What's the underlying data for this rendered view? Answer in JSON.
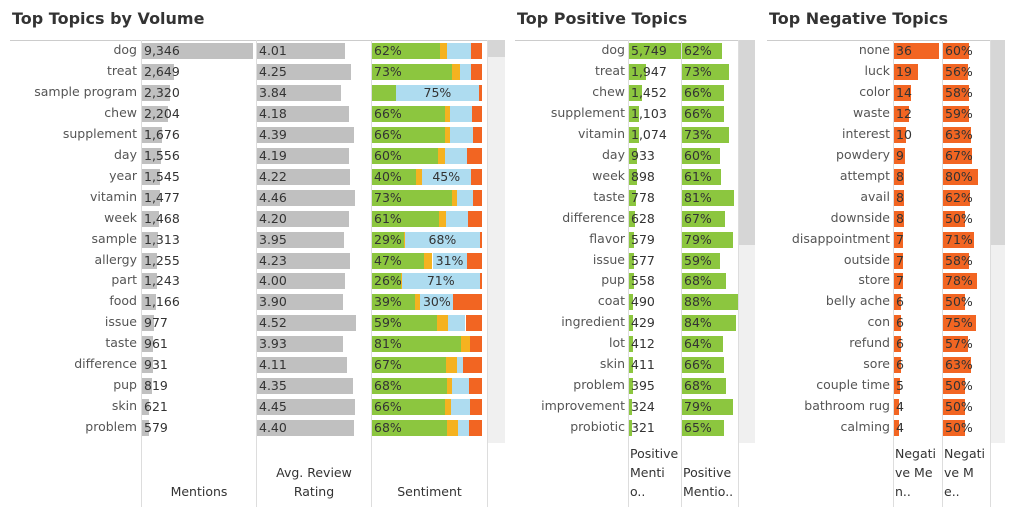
{
  "chart_data": [
    {
      "type": "table-bar",
      "title": "Top Topics by Volume",
      "categories": [
        "dog",
        "treat",
        "sample program",
        "chew",
        "supplement",
        "day",
        "year",
        "vitamin",
        "week",
        "sample",
        "allergy",
        "part",
        "food",
        "issue",
        "taste",
        "difference",
        "pup",
        "skin",
        "problem"
      ],
      "columns": [
        {
          "header": "Mentions",
          "color": "#c0c0c0",
          "xlim": [
            0,
            9400
          ],
          "values": [
            9346,
            2649,
            2320,
            2204,
            1676,
            1556,
            1545,
            1477,
            1468,
            1313,
            1255,
            1243,
            1166,
            977,
            961,
            931,
            819,
            621,
            579
          ],
          "value_labels": [
            "9,346",
            "2,649",
            "2,320",
            "2,204",
            "1,676",
            "1,556",
            "1,545",
            "1,477",
            "1,468",
            "1,313",
            "1,255",
            "1,243",
            "1,166",
            "977",
            "961",
            "931",
            "819",
            "621",
            "579"
          ]
        },
        {
          "header": "Avg. Review Rating",
          "color": "#c0c0c0",
          "xlim": [
            0,
            5
          ],
          "values": [
            4.01,
            4.25,
            3.84,
            4.18,
            4.39,
            4.19,
            4.22,
            4.46,
            4.2,
            3.95,
            4.23,
            4.0,
            3.9,
            4.52,
            3.93,
            4.11,
            4.35,
            4.45,
            4.4
          ],
          "value_labels": [
            "4.01",
            "4.25",
            "3.84",
            "4.18",
            "4.39",
            "4.19",
            "4.22",
            "4.46",
            "4.20",
            "3.95",
            "4.23",
            "4.00",
            "3.90",
            "4.52",
            "3.93",
            "4.11",
            "4.35",
            "4.45",
            "4.40"
          ]
        },
        {
          "header": "Sentiment",
          "stacked": true,
          "colors": [
            "#8cc63f",
            "#f5b220",
            "#aedcf0",
            "#f26522"
          ],
          "xlim": [
            0,
            100
          ],
          "values": [
            [
              62,
              6,
              22,
              10
            ],
            [
              73,
              7,
              10,
              10
            ],
            [
              22,
              0,
              75,
              3
            ],
            [
              66,
              5,
              20,
              9
            ],
            [
              66,
              5,
              21,
              8
            ],
            [
              60,
              6,
              20,
              14
            ],
            [
              40,
              5,
              45,
              10
            ],
            [
              73,
              4,
              15,
              8
            ],
            [
              61,
              6,
              20,
              13
            ],
            [
              29,
              1,
              68,
              2
            ],
            [
              47,
              8,
              31,
              14
            ],
            [
              26,
              1,
              71,
              2
            ],
            [
              39,
              5,
              30,
              26
            ],
            [
              59,
              10,
              16,
              15
            ],
            [
              81,
              8,
              0,
              11
            ],
            [
              67,
              10,
              6,
              17
            ],
            [
              68,
              5,
              15,
              12
            ],
            [
              66,
              6,
              17,
              11
            ],
            [
              68,
              10,
              10,
              12
            ]
          ],
          "value_labels": [
            [
              "62%",
              null,
              null,
              null
            ],
            [
              "73%",
              null,
              null,
              null
            ],
            [
              null,
              null,
              "75%",
              null
            ],
            [
              "66%",
              null,
              null,
              null
            ],
            [
              "66%",
              null,
              null,
              null
            ],
            [
              "60%",
              null,
              null,
              null
            ],
            [
              "40%",
              null,
              "45%",
              null
            ],
            [
              "73%",
              null,
              null,
              null
            ],
            [
              "61%",
              null,
              null,
              null
            ],
            [
              "29%",
              null,
              "68%",
              null
            ],
            [
              "47%",
              null,
              "31%",
              null
            ],
            [
              "26%",
              null,
              "71%",
              null
            ],
            [
              "39%",
              null,
              "30%",
              null
            ],
            [
              "59%",
              null,
              null,
              null
            ],
            [
              "81%",
              null,
              null,
              null
            ],
            [
              "67%",
              null,
              null,
              null
            ],
            [
              "68%",
              null,
              null,
              null
            ],
            [
              "66%",
              null,
              null,
              null
            ],
            [
              "68%",
              null,
              null,
              null
            ]
          ]
        }
      ]
    },
    {
      "type": "table-bar",
      "title": "Top Positive Topics",
      "categories": [
        "dog",
        "treat",
        "chew",
        "supplement",
        "vitamin",
        "day",
        "week",
        "taste",
        "difference",
        "flavor",
        "issue",
        "pup",
        "coat",
        "ingredient",
        "lot",
        "skin",
        "problem",
        "improvement",
        "probiotic"
      ],
      "columns": [
        {
          "header": "Positive Mentio..",
          "color": "#8cc63f",
          "xlim": [
            0,
            5800
          ],
          "values": [
            5749,
            1947,
            1452,
            1103,
            1074,
            933,
            898,
            778,
            628,
            579,
            577,
            558,
            490,
            429,
            412,
            411,
            395,
            324,
            321
          ],
          "value_labels": [
            "5,749",
            "1,947",
            "1,452",
            "1,103",
            "1,074",
            "933",
            "898",
            "778",
            "628",
            "579",
            "577",
            "558",
            "490",
            "429",
            "412",
            "411",
            "395",
            "324",
            "321"
          ]
        },
        {
          "header": "Positive Mentio..",
          "color": "#8cc63f",
          "xlim": [
            0,
            100
          ],
          "values": [
            62,
            73,
            66,
            66,
            73,
            60,
            61,
            81,
            67,
            79,
            59,
            68,
            88,
            84,
            64,
            66,
            68,
            79,
            65
          ],
          "value_labels": [
            "62%",
            "73%",
            "66%",
            "66%",
            "73%",
            "60%",
            "61%",
            "81%",
            "67%",
            "79%",
            "59%",
            "68%",
            "88%",
            "84%",
            "64%",
            "66%",
            "68%",
            "79%",
            "65%"
          ]
        }
      ]
    },
    {
      "type": "table-bar",
      "title": "Top Negative Topics",
      "categories": [
        "none",
        "luck",
        "color",
        "waste",
        "interest",
        "powdery",
        "attempt",
        "avail",
        "downside",
        "disappointment",
        "outside",
        "store",
        "belly ache",
        "con",
        "refund",
        "sore",
        "couple time",
        "bathroom rug",
        "calming"
      ],
      "columns": [
        {
          "header": "Negative Men..",
          "color": "#f26522",
          "xlim": [
            0,
            37
          ],
          "values": [
            36,
            19,
            14,
            12,
            10,
            9,
            8,
            8,
            8,
            7,
            7,
            7,
            6,
            6,
            6,
            6,
            5,
            4,
            4
          ],
          "value_labels": [
            "36",
            "19",
            "14",
            "12",
            "10",
            "9",
            "8",
            "8",
            "8",
            "7",
            "7",
            "7",
            "6",
            "6",
            "6",
            "6",
            "5",
            "4",
            "4"
          ]
        },
        {
          "header": "Negative Me..",
          "color": "#f26522",
          "xlim": [
            0,
            100
          ],
          "values": [
            60,
            56,
            58,
            59,
            63,
            67,
            80,
            62,
            50,
            71,
            58,
            78,
            50,
            75,
            57,
            63,
            50,
            50,
            50
          ],
          "value_labels": [
            "60%",
            "56%",
            "58%",
            "59%",
            "63%",
            "67%",
            "80%",
            "62%",
            "50%",
            "71%",
            "58%",
            "78%",
            "50%",
            "75%",
            "57%",
            "63%",
            "50%",
            "50%",
            "50%"
          ]
        }
      ]
    }
  ]
}
